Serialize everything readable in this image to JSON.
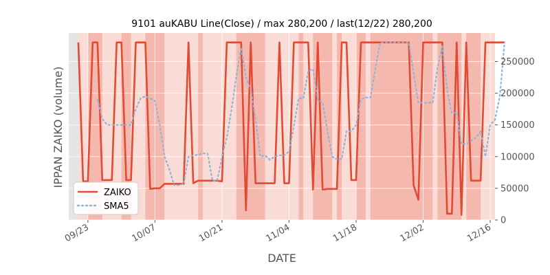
{
  "chart_data": {
    "type": "line",
    "title": "9101 auKABU Line(Close) / max 280,200 / last(12/22) 280,200",
    "xlabel": "DATE",
    "ylabel": "IPPAN ZAIKO (volume)",
    "ylim": [
      0,
      295000
    ],
    "yticks": [
      0,
      50000,
      100000,
      150000,
      200000,
      250000
    ],
    "ytick_labels": [
      "0",
      "50000",
      "100000",
      "150000",
      "200000",
      "250000"
    ],
    "x_start_day": -4,
    "x_end_day": 85,
    "xticks": [
      {
        "label": "09/23",
        "day": 0
      },
      {
        "label": "10/07",
        "day": 14
      },
      {
        "label": "10/21",
        "day": 28
      },
      {
        "label": "11/04",
        "day": 42
      },
      {
        "label": "11/18",
        "day": 56
      },
      {
        "label": "12/02",
        "day": 70
      },
      {
        "label": "12/16",
        "day": 84
      }
    ],
    "legend": {
      "position": "bottom-left",
      "entries": [
        "ZAIKO",
        "SMA5"
      ]
    },
    "colors": {
      "zaiko": "#e24a33",
      "sma5": "#8eb4d8",
      "band_dark": "#f5b8ae",
      "band_light": "#fadcd6",
      "background": "#e5e5e5"
    },
    "series": [
      {
        "name": "ZAIKO",
        "style": "solid",
        "points": [
          [
            -2,
            280200
          ],
          [
            -1,
            61000
          ],
          [
            0,
            61000
          ],
          [
            1,
            280200
          ],
          [
            2,
            280200
          ],
          [
            3,
            63000
          ],
          [
            4,
            63000
          ],
          [
            5,
            63000
          ],
          [
            6,
            280200
          ],
          [
            7,
            280200
          ],
          [
            8,
            63000
          ],
          [
            9,
            63000
          ],
          [
            10,
            280200
          ],
          [
            11,
            280200
          ],
          [
            12,
            280200
          ],
          [
            13,
            49000
          ],
          [
            14,
            50000
          ],
          [
            15,
            50000
          ],
          [
            16,
            57000
          ],
          [
            17,
            57000
          ],
          [
            18,
            57000
          ],
          [
            19,
            57000
          ],
          [
            20,
            57000
          ],
          [
            21,
            280200
          ],
          [
            22,
            58000
          ],
          [
            23,
            62000
          ],
          [
            24,
            62000
          ],
          [
            25,
            62000
          ],
          [
            26,
            62000
          ],
          [
            27,
            62000
          ],
          [
            28,
            61000
          ],
          [
            29,
            280200
          ],
          [
            30,
            280200
          ],
          [
            31,
            280200
          ],
          [
            32,
            280200
          ],
          [
            33,
            15000
          ],
          [
            34,
            280200
          ],
          [
            35,
            58000
          ],
          [
            36,
            58000
          ],
          [
            37,
            58000
          ],
          [
            38,
            58000
          ],
          [
            39,
            58000
          ],
          [
            40,
            280200
          ],
          [
            41,
            58000
          ],
          [
            42,
            58000
          ],
          [
            43,
            280200
          ],
          [
            44,
            280200
          ],
          [
            45,
            280200
          ],
          [
            46,
            280200
          ],
          [
            47,
            48000
          ],
          [
            48,
            280200
          ],
          [
            49,
            48000
          ],
          [
            50,
            49000
          ],
          [
            51,
            49000
          ],
          [
            52,
            49000
          ],
          [
            53,
            280200
          ],
          [
            54,
            280200
          ],
          [
            55,
            63000
          ],
          [
            56,
            63000
          ],
          [
            57,
            280200
          ],
          [
            58,
            280200
          ],
          [
            59,
            280200
          ],
          [
            60,
            280200
          ],
          [
            61,
            280200
          ],
          [
            62,
            280200
          ],
          [
            63,
            280200
          ],
          [
            64,
            280200
          ],
          [
            65,
            280200
          ],
          [
            66,
            280200
          ],
          [
            67,
            280200
          ],
          [
            68,
            55000
          ],
          [
            69,
            32000
          ],
          [
            70,
            280200
          ],
          [
            71,
            280200
          ],
          [
            72,
            280200
          ],
          [
            73,
            280200
          ],
          [
            74,
            280200
          ],
          [
            75,
            10000
          ],
          [
            76,
            10000
          ],
          [
            77,
            280200
          ],
          [
            78,
            8000
          ],
          [
            79,
            280200
          ],
          [
            80,
            62000
          ],
          [
            81,
            62000
          ],
          [
            82,
            62000
          ],
          [
            83,
            280200
          ],
          [
            84,
            280200
          ],
          [
            85,
            280200
          ],
          [
            86,
            280200
          ],
          [
            87,
            280200
          ]
        ]
      },
      {
        "name": "SMA5",
        "style": "dotted",
        "points": [
          [
            2,
            190000
          ],
          [
            3,
            160000
          ],
          [
            4,
            150000
          ],
          [
            5,
            150000
          ],
          [
            6,
            150000
          ],
          [
            7,
            150000
          ],
          [
            8,
            150000
          ],
          [
            9,
            150000
          ],
          [
            10,
            175000
          ],
          [
            11,
            192000
          ],
          [
            12,
            195000
          ],
          [
            13,
            192000
          ],
          [
            14,
            188000
          ],
          [
            15,
            150000
          ],
          [
            16,
            100000
          ],
          [
            17,
            80000
          ],
          [
            18,
            55000
          ],
          [
            19,
            55000
          ],
          [
            20,
            57000
          ],
          [
            21,
            100000
          ],
          [
            22,
            102000
          ],
          [
            23,
            103000
          ],
          [
            24,
            105000
          ],
          [
            25,
            105000
          ],
          [
            26,
            62000
          ],
          [
            27,
            62000
          ],
          [
            28,
            100000
          ],
          [
            29,
            130000
          ],
          [
            30,
            175000
          ],
          [
            31,
            228000
          ],
          [
            32,
            272000
          ],
          [
            33,
            225000
          ],
          [
            34,
            205000
          ],
          [
            35,
            160000
          ],
          [
            36,
            100000
          ],
          [
            37,
            102000
          ],
          [
            38,
            95000
          ],
          [
            39,
            100000
          ],
          [
            40,
            102000
          ],
          [
            41,
            102000
          ],
          [
            42,
            108000
          ],
          [
            43,
            148000
          ],
          [
            44,
            192000
          ],
          [
            45,
            192000
          ],
          [
            46,
            235000
          ],
          [
            47,
            238000
          ],
          [
            48,
            190000
          ],
          [
            49,
            185000
          ],
          [
            50,
            142000
          ],
          [
            51,
            100000
          ],
          [
            52,
            96000
          ],
          [
            53,
            96000
          ],
          [
            54,
            140000
          ],
          [
            55,
            140000
          ],
          [
            56,
            150000
          ],
          [
            57,
            190000
          ],
          [
            58,
            193000
          ],
          [
            59,
            193000
          ],
          [
            60,
            238000
          ],
          [
            61,
            280000
          ],
          [
            62,
            280200
          ],
          [
            63,
            280200
          ],
          [
            64,
            280200
          ],
          [
            65,
            280200
          ],
          [
            66,
            280200
          ],
          [
            67,
            280200
          ],
          [
            68,
            232000
          ],
          [
            69,
            185000
          ],
          [
            70,
            185000
          ],
          [
            71,
            185000
          ],
          [
            72,
            185000
          ],
          [
            73,
            240000
          ],
          [
            74,
            275000
          ],
          [
            75,
            205000
          ],
          [
            76,
            168000
          ],
          [
            77,
            170000
          ],
          [
            78,
            120000
          ],
          [
            79,
            120000
          ],
          [
            80,
            125000
          ],
          [
            81,
            130000
          ],
          [
            82,
            140000
          ],
          [
            83,
            100000
          ],
          [
            84,
            150000
          ],
          [
            85,
            158000
          ],
          [
            86,
            195000
          ],
          [
            87,
            280200
          ]
        ]
      }
    ],
    "bands_dark": [
      [
        0,
        3
      ],
      [
        7,
        9
      ],
      [
        12,
        16
      ],
      [
        23,
        24
      ],
      [
        31,
        36
      ],
      [
        36,
        37
      ],
      [
        44,
        45
      ],
      [
        47,
        51
      ],
      [
        52,
        53
      ],
      [
        56,
        58
      ],
      [
        59,
        72
      ],
      [
        73,
        78
      ],
      [
        79,
        80
      ],
      [
        80,
        81
      ],
      [
        81,
        82
      ],
      [
        85,
        90
      ]
    ]
  }
}
